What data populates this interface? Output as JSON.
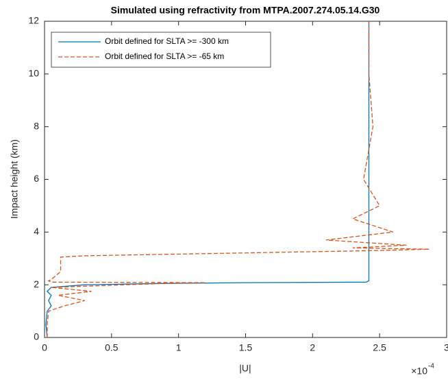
{
  "chart_data": {
    "type": "line",
    "title": "Simulated using refractivity from MTPA.2007.274.05.14.G30",
    "x_label": "|U|",
    "y_label": "Impact height (km)",
    "x_multiplier": {
      "base": "×10",
      "exponent": "-4"
    },
    "xlim": [
      0,
      3
    ],
    "xticks": [
      0,
      0.5,
      1,
      1.5,
      2,
      2.5,
      3
    ],
    "ylim": [
      0,
      12
    ],
    "yticks": [
      0,
      2,
      4,
      6,
      8,
      10,
      12
    ],
    "legend": "upper left",
    "y": [
      0,
      0.5,
      1.0,
      1.2,
      1.4,
      1.6,
      1.75,
      1.9,
      2.0,
      2.05,
      2.08,
      2.1,
      2.15,
      2.2,
      2.5,
      2.9,
      3.05,
      3.1,
      3.3,
      3.35,
      3.4,
      3.5,
      3.7,
      4.0,
      4.5,
      5,
      6,
      8,
      10,
      12
    ],
    "series": [
      {
        "name": "Orbit defined for SLTA >= -300 km",
        "color": "#0072bd",
        "dash": false,
        "values": [
          0.02,
          0.01,
          0.02,
          0.05,
          0.03,
          0.05,
          0.02,
          0.05,
          0.3,
          0.9,
          1.5,
          2.4,
          2.42,
          2.42,
          2.42,
          2.42,
          2.42,
          2.42,
          2.42,
          2.42,
          2.42,
          2.42,
          2.42,
          2.42,
          2.42,
          2.42,
          2.42,
          2.42,
          2.42,
          2.42
        ]
      },
      {
        "name": "Orbit defined for SLTA >= -65 km",
        "color": "#d95319",
        "dash": true,
        "values": [
          0.02,
          0.02,
          0.03,
          0.15,
          0.3,
          0.1,
          0.35,
          0.05,
          0.6,
          0.9,
          1.2,
          0.05,
          0.03,
          0.05,
          0.12,
          0.12,
          0.12,
          0.3,
          2.5,
          2.87,
          2.3,
          2.7,
          2.1,
          2.6,
          2.3,
          2.5,
          2.38,
          2.45,
          2.42,
          2.42
        ]
      }
    ]
  }
}
